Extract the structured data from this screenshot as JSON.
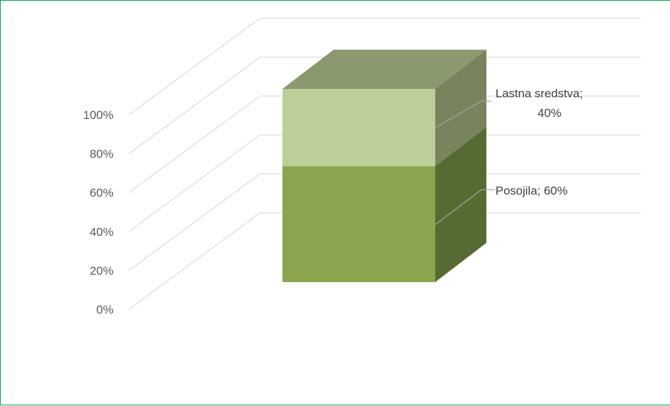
{
  "chart_data": {
    "type": "bar",
    "subtype": "3d-stacked-100",
    "title": "",
    "xlabel": "",
    "ylabel": "",
    "categories": [
      ""
    ],
    "series": [
      {
        "name": "Posojila",
        "values": [
          60
        ],
        "color": "#8aa54e",
        "top_color": "#6f8a3c",
        "side_color": "#566b31"
      },
      {
        "name": "Lastna sredstva",
        "values": [
          40
        ],
        "color": "#bccf98",
        "top_color": "#8a9a6e",
        "side_color": "#77845e"
      }
    ],
    "data_labels": [
      {
        "series": "Posojila",
        "text": "Posojila; 60%"
      },
      {
        "series": "Lastna sredstva",
        "text_lines": [
          "Lastna sredstva;",
          "40%"
        ]
      }
    ],
    "ylim": [
      0,
      100
    ],
    "yticks": [
      "0%",
      "20%",
      "40%",
      "60%",
      "80%",
      "100%"
    ],
    "grid": true,
    "legend": "none"
  },
  "colors": {
    "frame_border": "#00a550",
    "gridline": "#d9d9d9",
    "tick_text": "#595959",
    "leader_line": "#a6a6a6"
  }
}
